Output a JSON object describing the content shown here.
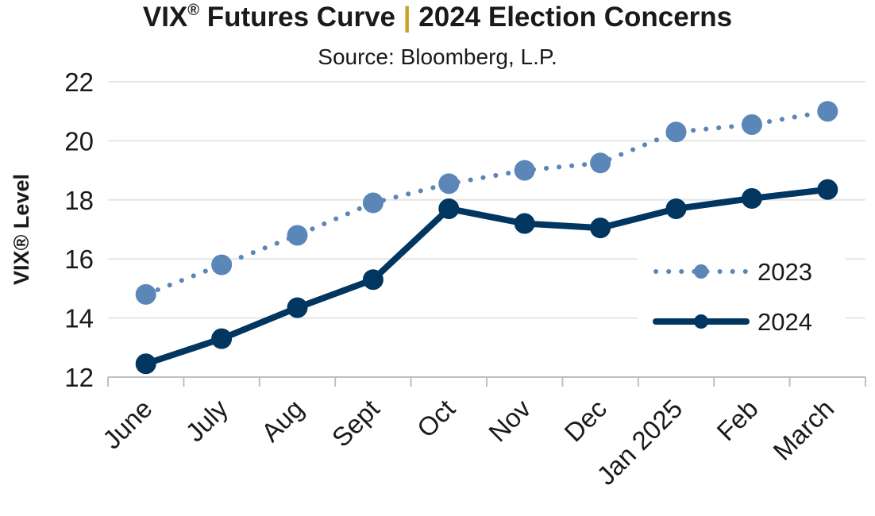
{
  "title": {
    "part1": "VIX",
    "reg": "®",
    "part2": " Futures Curve ",
    "separator": "|",
    "part3": " 2024 Election Concerns"
  },
  "subtitle": "Source: Bloomberg, L.P.",
  "colors": {
    "series_2023": "#5b86b8",
    "series_2024": "#003660",
    "grid": "#e6e6e6",
    "axis": "#bfbfbf",
    "title_separator": "#c9a227"
  },
  "chart_data": {
    "type": "line",
    "title": "VIX® Futures Curve | 2024 Election Concerns",
    "subtitle": "Source: Bloomberg, L.P.",
    "ylabel": "VIX® Level",
    "xlabel": "",
    "ylim": [
      12,
      22
    ],
    "yticks": [
      12,
      14,
      16,
      18,
      20,
      22
    ],
    "grid": "horizontal",
    "legend_position": "right",
    "categories": [
      "June",
      "July",
      "Aug",
      "Sept",
      "Oct",
      "Nov",
      "Dec",
      "Jan 2025",
      "Feb",
      "March"
    ],
    "series": [
      {
        "name": "2023",
        "style": "dotted",
        "values": [
          14.8,
          15.8,
          16.8,
          17.9,
          18.55,
          19.0,
          19.25,
          20.3,
          20.55,
          21.0
        ]
      },
      {
        "name": "2024",
        "style": "solid",
        "values": [
          12.45,
          13.3,
          14.35,
          15.3,
          17.7,
          17.2,
          17.05,
          17.7,
          18.05,
          18.35
        ]
      }
    ]
  }
}
